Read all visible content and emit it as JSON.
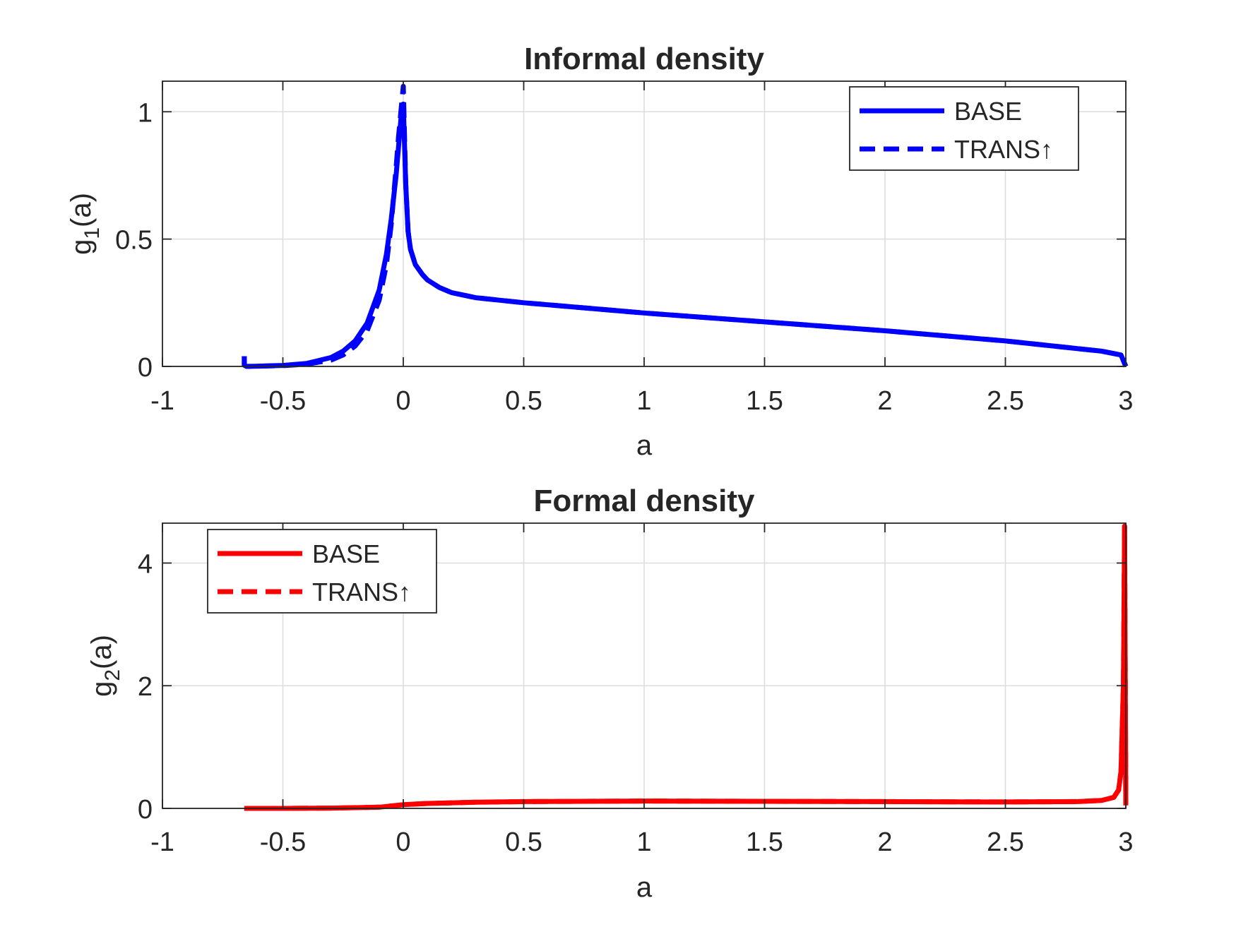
{
  "chart_data": [
    {
      "type": "line",
      "title": "Informal density",
      "xlabel": "a",
      "ylabel": "g<sub>1</sub>(a)",
      "ylabel_main": "g",
      "ylabel_sub": "1",
      "ylabel_tail": "(a)",
      "xlim": [
        -1,
        3
      ],
      "ylim": [
        0,
        1.12
      ],
      "xticks": [
        -1,
        -0.5,
        0,
        0.5,
        1,
        1.5,
        2,
        2.5,
        3
      ],
      "xtick_labels": [
        "-1",
        "-0.5",
        "0",
        "0.5",
        "1",
        "1.5",
        "2",
        "2.5",
        "3"
      ],
      "yticks": [
        0,
        0.5,
        1
      ],
      "ytick_labels": [
        "0",
        "0.5",
        "1"
      ],
      "grid": true,
      "legend_position": "top-right",
      "color": "#0000ff",
      "series": [
        {
          "name": "BASE",
          "style": "solid",
          "x": [
            -0.66,
            -0.66,
            -0.65,
            -0.6,
            -0.5,
            -0.4,
            -0.3,
            -0.25,
            -0.2,
            -0.15,
            -0.1,
            -0.07,
            -0.05,
            -0.03,
            -0.02,
            -0.01,
            0.0,
            0.01,
            0.02,
            0.03,
            0.05,
            0.08,
            0.1,
            0.15,
            0.2,
            0.3,
            0.5,
            1.0,
            1.5,
            2.0,
            2.5,
            2.9,
            2.98,
            3.0
          ],
          "y": [
            0.04,
            0.005,
            0.0,
            0.001,
            0.004,
            0.012,
            0.035,
            0.06,
            0.1,
            0.17,
            0.3,
            0.44,
            0.58,
            0.75,
            0.86,
            0.97,
            1.03,
            0.72,
            0.53,
            0.46,
            0.4,
            0.36,
            0.34,
            0.31,
            0.29,
            0.27,
            0.25,
            0.21,
            0.175,
            0.14,
            0.1,
            0.06,
            0.045,
            0.0
          ]
        },
        {
          "name": "TRANS↑",
          "style": "dashed",
          "x": [
            -0.66,
            -0.66,
            -0.65,
            -0.6,
            -0.5,
            -0.4,
            -0.3,
            -0.25,
            -0.2,
            -0.15,
            -0.1,
            -0.07,
            -0.05,
            -0.03,
            -0.02,
            -0.01,
            0.0,
            0.01,
            0.02,
            0.03,
            0.05,
            0.08,
            0.1,
            0.15,
            0.2,
            0.3,
            0.5,
            1.0,
            1.5,
            2.0,
            2.5,
            2.9,
            2.98,
            3.0
          ],
          "y": [
            0.04,
            0.005,
            0.0,
            0.001,
            0.003,
            0.009,
            0.025,
            0.045,
            0.08,
            0.14,
            0.26,
            0.4,
            0.56,
            0.78,
            0.9,
            1.0,
            1.1,
            0.72,
            0.53,
            0.46,
            0.4,
            0.36,
            0.34,
            0.31,
            0.29,
            0.27,
            0.25,
            0.21,
            0.175,
            0.14,
            0.1,
            0.06,
            0.045,
            0.0
          ]
        }
      ]
    },
    {
      "type": "line",
      "title": "Formal density",
      "xlabel": "a",
      "ylabel_main": "g",
      "ylabel_sub": "2",
      "ylabel_tail": "(a)",
      "xlim": [
        -1,
        3
      ],
      "ylim": [
        0,
        4.65
      ],
      "xticks": [
        -1,
        -0.5,
        0,
        0.5,
        1,
        1.5,
        2,
        2.5,
        3
      ],
      "xtick_labels": [
        "-1",
        "-0.5",
        "0",
        "0.5",
        "1",
        "1.5",
        "2",
        "2.5",
        "3"
      ],
      "yticks": [
        0,
        2,
        4
      ],
      "ytick_labels": [
        "0",
        "2",
        "4"
      ],
      "grid": true,
      "legend_position": "top-left",
      "color": "#ff0000",
      "series": [
        {
          "name": "BASE",
          "style": "solid",
          "x": [
            -0.66,
            -0.5,
            -0.3,
            -0.1,
            0.0,
            0.1,
            0.3,
            0.5,
            1.0,
            1.5,
            2.0,
            2.5,
            2.8,
            2.9,
            2.95,
            2.97,
            2.98,
            2.99,
            2.995,
            3.0
          ],
          "y": [
            0.0,
            0.0,
            0.005,
            0.02,
            0.06,
            0.08,
            0.1,
            0.11,
            0.12,
            0.115,
            0.11,
            0.105,
            0.11,
            0.13,
            0.18,
            0.3,
            0.6,
            2.0,
            4.6,
            0.05
          ]
        },
        {
          "name": "TRANS↑",
          "style": "dashed",
          "x": [
            -0.66,
            -0.5,
            -0.3,
            -0.1,
            0.0,
            0.1,
            0.3,
            0.5,
            1.0,
            1.5,
            2.0,
            2.5,
            2.8,
            2.9,
            2.95,
            2.97,
            2.98,
            2.99,
            2.995,
            3.0
          ],
          "y": [
            0.0,
            0.0,
            0.005,
            0.02,
            0.06,
            0.08,
            0.1,
            0.11,
            0.12,
            0.115,
            0.11,
            0.105,
            0.11,
            0.13,
            0.18,
            0.3,
            0.6,
            2.0,
            4.6,
            0.05
          ]
        }
      ]
    }
  ]
}
